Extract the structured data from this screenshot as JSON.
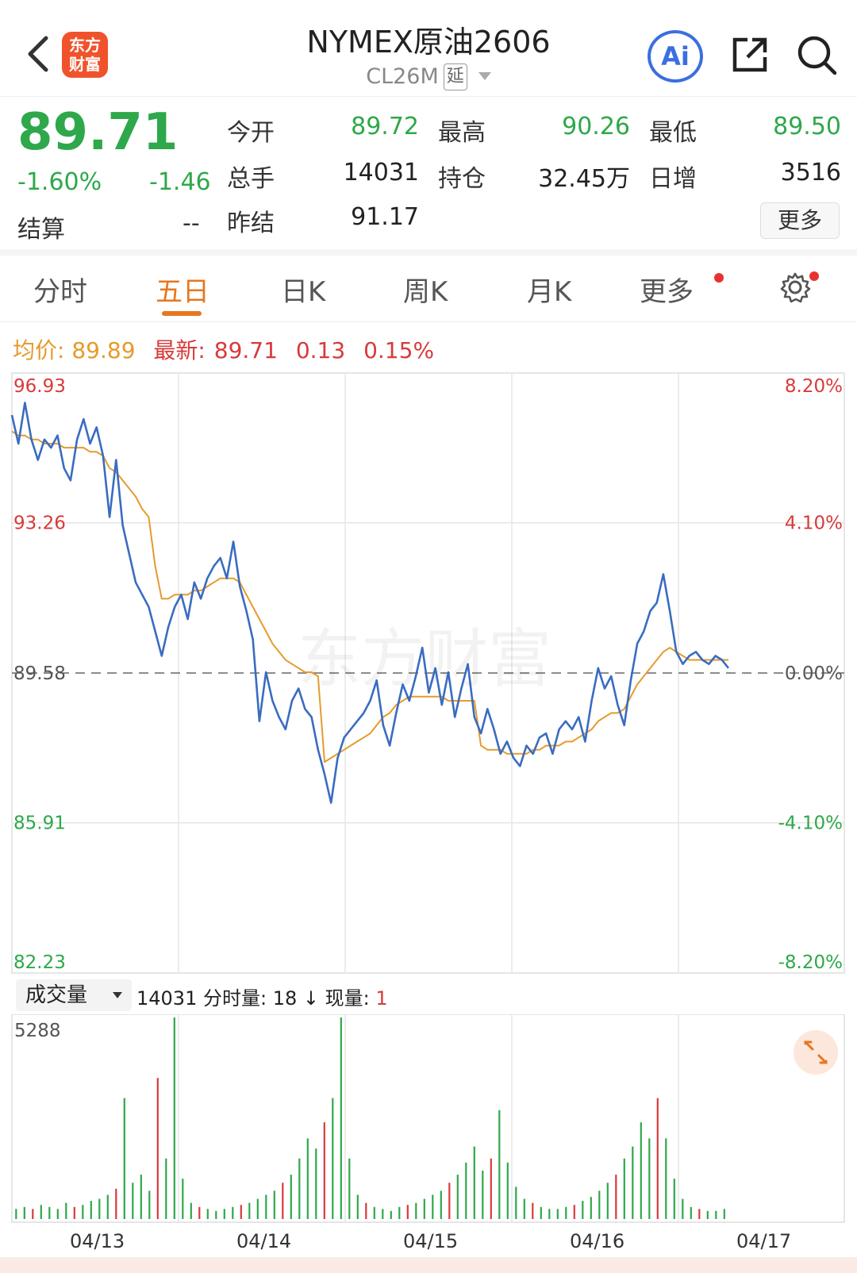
{
  "header": {
    "logo_line1": "东方",
    "logo_line2": "财富",
    "title": "NYMEX原油2606",
    "code": "CL26M",
    "delay_tag": "延",
    "ai_label": "Ai"
  },
  "quote": {
    "price": "89.71",
    "change_pct": "-1.60%",
    "change": "-1.46",
    "settle_label": "结算",
    "settle_value": "--",
    "open_label": "今开",
    "open_value": "89.72",
    "high_label": "最高",
    "high_value": "90.26",
    "low_label": "最低",
    "low_value": "89.50",
    "volume_label": "总手",
    "volume_value": "14031",
    "oi_label": "持仓",
    "oi_value": "32.45万",
    "oi_change_label": "日增",
    "oi_change_value": "3516",
    "prev_settle_label": "昨结",
    "prev_settle_value": "91.17",
    "more_label": "更多"
  },
  "tabs": {
    "items": [
      "分时",
      "五日",
      "日K",
      "周K",
      "月K",
      "更多"
    ],
    "active": "五日"
  },
  "info_bar": {
    "avg_label": "均价:",
    "avg_value": "89.89",
    "latest_label": "最新:",
    "latest_value": "89.71",
    "latest_change": "0.13",
    "latest_pct": "0.15%"
  },
  "chart_data": {
    "type": "line",
    "y_ticks_left": [
      "96.93",
      "93.26",
      "89.58",
      "85.91",
      "82.23"
    ],
    "y_ticks_right": [
      "8.20%",
      "4.10%",
      "0.00%",
      "-4.10%",
      "-8.20%"
    ],
    "ylim": [
      82.23,
      96.93
    ],
    "reference_line": 89.58,
    "watermark": "东方财富",
    "x_labels": [
      "04/13",
      "04/14",
      "04/15",
      "04/16",
      "04/17"
    ],
    "series": [
      {
        "color": "#3a6cc0",
        "values": [
          95.9,
          95.2,
          96.2,
          95.3,
          94.8,
          95.3,
          95.1,
          95.4,
          94.6,
          94.3,
          95.3,
          95.8,
          95.2,
          95.6,
          94.9,
          93.4,
          94.8,
          93.2,
          92.5,
          91.8,
          91.5,
          91.2,
          90.6,
          90.0,
          90.7,
          91.2,
          91.5,
          90.9,
          91.8,
          91.4,
          91.9,
          92.2,
          92.4,
          91.9,
          92.8,
          91.7,
          91.1,
          90.4,
          88.4,
          89.6,
          88.9,
          88.5,
          88.2,
          88.9,
          89.2,
          88.7,
          88.5,
          87.7,
          87.1,
          86.4,
          87.5,
          88.0,
          88.2,
          88.4,
          88.6,
          88.9,
          89.4,
          88.3,
          87.8,
          88.6,
          89.3,
          88.9,
          89.5,
          90.2,
          89.1,
          89.7,
          88.8,
          89.6,
          88.5,
          89.2,
          89.8,
          88.5,
          88.1,
          88.7,
          88.2,
          87.6,
          87.9,
          87.5,
          87.3,
          87.8,
          87.6,
          88.0,
          88.1,
          87.6,
          88.2,
          88.4,
          88.2,
          88.5,
          87.9,
          88.9,
          89.7,
          89.2,
          89.5,
          88.8,
          88.3,
          89.4,
          90.3,
          90.6,
          91.1,
          91.3,
          92.0,
          91.1,
          90.1,
          89.8,
          90.0,
          90.1,
          89.9,
          89.8,
          90.0,
          89.9,
          89.7
        ]
      },
      {
        "color": "#e59b2c",
        "values": [
          95.5,
          95.4,
          95.4,
          95.3,
          95.3,
          95.2,
          95.2,
          95.2,
          95.1,
          95.1,
          95.1,
          95.1,
          95.0,
          95.0,
          94.9,
          94.6,
          94.5,
          94.3,
          94.1,
          93.9,
          93.6,
          93.4,
          92.2,
          91.4,
          91.4,
          91.5,
          91.5,
          91.5,
          91.6,
          91.6,
          91.7,
          91.8,
          91.9,
          91.9,
          91.9,
          91.8,
          91.5,
          91.2,
          90.9,
          90.6,
          90.3,
          90.1,
          89.9,
          89.8,
          89.7,
          89.6,
          89.6,
          89.5,
          87.4,
          87.5,
          87.6,
          87.7,
          87.8,
          87.9,
          88.0,
          88.1,
          88.3,
          88.5,
          88.6,
          88.8,
          88.9,
          89.0,
          89.0,
          89.0,
          89.0,
          89.0,
          89.0,
          88.9,
          88.9,
          88.9,
          88.9,
          88.9,
          87.8,
          87.7,
          87.7,
          87.7,
          87.6,
          87.6,
          87.6,
          87.6,
          87.7,
          87.7,
          87.8,
          87.8,
          87.8,
          87.9,
          87.9,
          88.0,
          88.1,
          88.2,
          88.4,
          88.5,
          88.6,
          88.6,
          88.7,
          89.0,
          89.3,
          89.5,
          89.7,
          89.9,
          90.1,
          90.2,
          90.1,
          90.0,
          89.9,
          89.9,
          89.9,
          89.9,
          89.9,
          89.9,
          89.9
        ]
      }
    ]
  },
  "volume": {
    "selector_label": "成交量",
    "total": "14031",
    "minute_label": "分时量:",
    "minute_value": "18",
    "now_label": "现量:",
    "now_value": "1",
    "max_label": "5288",
    "bars": [
      5,
      6,
      5,
      7,
      6,
      5,
      8,
      6,
      7,
      9,
      10,
      12,
      15,
      60,
      18,
      22,
      14,
      70,
      30,
      100,
      20,
      8,
      6,
      5,
      4,
      5,
      6,
      7,
      8,
      10,
      12,
      14,
      18,
      22,
      30,
      40,
      35,
      48,
      60,
      100,
      30,
      12,
      8,
      6,
      5,
      4,
      6,
      7,
      8,
      10,
      12,
      14,
      18,
      22,
      28,
      36,
      24,
      30,
      54,
      28,
      16,
      10,
      8,
      6,
      5,
      5,
      6,
      7,
      9,
      11,
      14,
      18,
      22,
      30,
      36,
      48,
      40,
      60,
      40,
      20,
      10,
      6,
      5,
      4,
      4,
      5
    ]
  }
}
